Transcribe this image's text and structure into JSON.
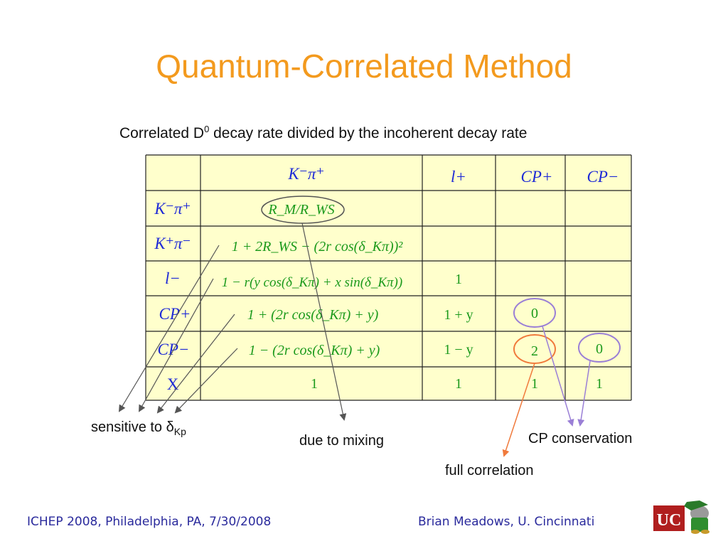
{
  "title": "Quantum-Correlated Method",
  "caption": {
    "pre": "Correlated D",
    "sup": "0",
    "post": " decay rate divided by the incoherent decay rate"
  },
  "table": {
    "col_headers": [
      "K⁻π⁺",
      "l+",
      "CP+",
      "CP−"
    ],
    "rows": [
      {
        "header": "K⁻π⁺",
        "expr": "R_M/R_WS",
        "cells": [
          "",
          "",
          "",
          ""
        ]
      },
      {
        "header": "K⁺π⁻",
        "expr": "1 + 2R_WS − (2r cos(δ_Kπ))²",
        "cells": [
          "",
          "",
          "",
          ""
        ]
      },
      {
        "header": "l−",
        "expr": "1 − r(y cos(δ_Kπ) + x sin(δ_Kπ))",
        "cells": [
          "1",
          "",
          ""
        ]
      },
      {
        "header": "CP+",
        "expr": "1 + (2r cos(δ_Kπ) + y)",
        "cells": [
          "1 + y",
          "0",
          ""
        ]
      },
      {
        "header": "CP−",
        "expr": "1 − (2r cos(δ_Kπ) + y)",
        "cells": [
          "1 − y",
          "2",
          "0"
        ]
      },
      {
        "header": "X",
        "expr": "1",
        "cells": [
          "1",
          "1",
          "1"
        ]
      }
    ]
  },
  "notes": {
    "sensitive_pre": "sensitive to δ",
    "sensitive_sub": "Kp",
    "mixing": "due to mixing",
    "cp_conservation": "CP conservation",
    "full_correlation": "full correlation"
  },
  "colors": {
    "title": "#F39A1E",
    "table_bg": "#FFFFCC",
    "header_text": "#1E2AD6",
    "expr_text": "#1C9A1C",
    "circle_purple": "#9A7FD6",
    "circle_orange": "#F07A3C",
    "arrow_gray": "#555555",
    "footer_text": "#2A2A9C"
  },
  "footer": {
    "left": "ICHEP 2008, Philadelphia, PA, 7/30/2008",
    "right": "Brian Meadows, U. Cincinnati"
  },
  "logos": [
    "uc-logo-icon",
    "babar-elephant-icon"
  ]
}
